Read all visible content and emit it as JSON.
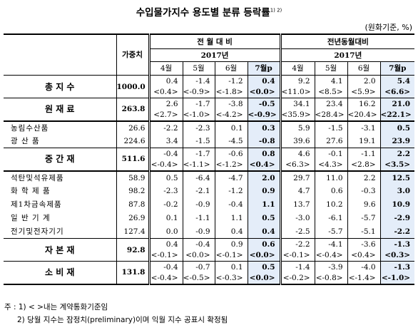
{
  "title": "수입물가지수 용도별 분류 등락률",
  "title_sup": "1) 2)",
  "unit": "(원화기준, %)",
  "headers": {
    "weight": "가중치",
    "mom_group": "전 월 대 비",
    "yoy_group": "전년동월대비",
    "year": "2017년",
    "months": [
      "4월",
      "5월",
      "6월",
      "7월p"
    ]
  },
  "rows": [
    {
      "label": "총 지 수",
      "weight": "1000.0",
      "type": "major",
      "mom": [
        "0.4",
        "-1.4",
        "-1.2",
        "0.4"
      ],
      "mom_c": [
        "<0.4>",
        "<-0.9>",
        "<-1.8>",
        "<0.0>"
      ],
      "yoy": [
        "9.2",
        "4.1",
        "2.0",
        "5.4"
      ],
      "yoy_c": [
        "<11.0>",
        "<8.5>",
        "<5.9>",
        "<6.6>"
      ]
    },
    {
      "label": "원 재 료",
      "weight": "263.8",
      "type": "major",
      "mom": [
        "2.6",
        "-1.7",
        "-3.8",
        "-0.5"
      ],
      "mom_c": [
        "<2.7>",
        "<-1.0>",
        "<-4.2>",
        "<-0.9>"
      ],
      "yoy": [
        "34.1",
        "23.4",
        "16.2",
        "21.0"
      ],
      "yoy_c": [
        "<35.9>",
        "<28.4>",
        "<20.4>",
        "<22.1>"
      ]
    },
    {
      "label": "농림수산품",
      "weight": "26.6",
      "type": "sub",
      "mom": [
        "-2.2",
        "-2.3",
        "0.1",
        "0.3"
      ],
      "yoy": [
        "5.9",
        "-1.5",
        "-3.1",
        "0.5"
      ]
    },
    {
      "label": "광 산 품",
      "weight": "224.6",
      "type": "sub",
      "mom": [
        "3.4",
        "-1.5",
        "-4.5",
        "-0.8"
      ],
      "yoy": [
        "39.6",
        "27.6",
        "19.1",
        "23.9"
      ]
    },
    {
      "label": "중 간 재",
      "weight": "511.6",
      "type": "major",
      "mom": [
        "-0.4",
        "-1.7",
        "-0.6",
        "0.8"
      ],
      "mom_c": [
        "<-0.4>",
        "<-1.1>",
        "<-1.2>",
        "<0.4>"
      ],
      "yoy": [
        "4.6",
        "-0.1",
        "-1.1",
        "2.2"
      ],
      "yoy_c": [
        "<6.3>",
        "<4.3>",
        "<2.8>",
        "<3.5>"
      ]
    },
    {
      "label": "석탄및석유제품",
      "weight": "58.9",
      "type": "sub",
      "mom": [
        "0.5",
        "-6.4",
        "-4.7",
        "2.0"
      ],
      "yoy": [
        "29.7",
        "11.0",
        "2.2",
        "12.5"
      ]
    },
    {
      "label": "화 학 제 품",
      "weight": "98.2",
      "type": "sub",
      "mom": [
        "-2.3",
        "-2.1",
        "-1.2",
        "0.9"
      ],
      "yoy": [
        "4.7",
        "0.6",
        "-0.3",
        "3.0"
      ]
    },
    {
      "label": "제1차금속제품",
      "weight": "87.8",
      "type": "sub",
      "mom": [
        "-0.2",
        "-0.9",
        "-0.4",
        "1.1"
      ],
      "yoy": [
        "13.7",
        "10.2",
        "9.6",
        "10.9"
      ]
    },
    {
      "label": "일 반 기 계",
      "weight": "26.9",
      "type": "sub",
      "mom": [
        "0.1",
        "-1.1",
        "1.1",
        "0.5"
      ],
      "yoy": [
        "-3.0",
        "-6.1",
        "-5.7",
        "-2.9"
      ]
    },
    {
      "label": "전기및전자기기",
      "weight": "127.4",
      "type": "sub",
      "mom": [
        "0.0",
        "-0.9",
        "0.4",
        "0.4"
      ],
      "yoy": [
        "-2.5",
        "-5.7",
        "-5.1",
        "-2.2"
      ]
    },
    {
      "label": "자 본 재",
      "weight": "92.8",
      "type": "major",
      "mom": [
        "0.4",
        "-0.4",
        "0.9",
        "0.6"
      ],
      "mom_c": [
        "<-0.1>",
        "<0.0>",
        "<-0.1>",
        "<0.0>"
      ],
      "yoy": [
        "-2.2",
        "-4.1",
        "-3.6",
        "-1.3"
      ],
      "yoy_c": [
        "<-0.1>",
        "<-0.4>",
        "<0.4>",
        "<0.3>"
      ]
    },
    {
      "label": "소 비 재",
      "weight": "131.8",
      "type": "major",
      "mom": [
        "-0.4",
        "-0.7",
        "0.1",
        "0.5"
      ],
      "mom_c": [
        "<-0.4>",
        "<-0.5>",
        "<-0.3>",
        "<0.0>"
      ],
      "yoy": [
        "-1.4",
        "-3.9",
        "-4.0",
        "-1.3"
      ],
      "yoy_c": [
        "<-0.2>",
        "<-0.8>",
        "<-1.4>",
        "<-1.0>"
      ]
    }
  ],
  "footnotes": [
    "주 : 1) < >내는 계약통화기준임",
    "2) 당월 지수는 잠정치(preliminary)이며 익월 지수 공표시 확정됨"
  ],
  "colors": {
    "highlight": "#e4edf9"
  }
}
